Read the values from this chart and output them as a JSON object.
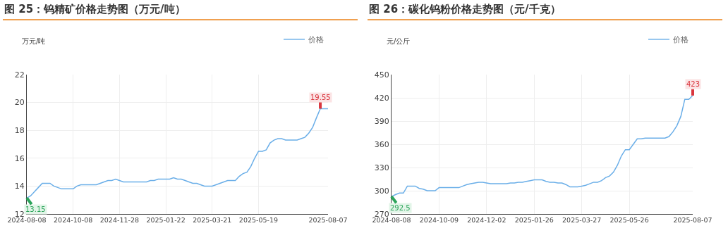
{
  "chart_data": [
    {
      "type": "line",
      "title": "图 25：钨精矿价格走势图（万元/吨）",
      "ylabel": "万元/吨",
      "legend": "top right",
      "grid": true,
      "marker": "none",
      "line_style": "solid",
      "categories": [
        "2024-08-08",
        null,
        null,
        null,
        null,
        null,
        null,
        null,
        null,
        null,
        null,
        null,
        "2024-10-08",
        null,
        null,
        null,
        null,
        null,
        null,
        null,
        null,
        null,
        null,
        null,
        "2024-11-28",
        null,
        null,
        null,
        null,
        null,
        null,
        null,
        null,
        null,
        null,
        null,
        "2025-01-22",
        null,
        null,
        null,
        null,
        null,
        null,
        null,
        null,
        null,
        null,
        null,
        "2025-03-21",
        null,
        null,
        null,
        null,
        null,
        null,
        null,
        null,
        null,
        null,
        null,
        "2025-05-19",
        null,
        null,
        null,
        null,
        null,
        null,
        null,
        null,
        null,
        null,
        null,
        null,
        null,
        null,
        null,
        null,
        null,
        "2025-08-07"
      ],
      "ylim": [
        12,
        22
      ],
      "yticks": [
        12,
        14,
        16,
        18,
        20,
        22
      ],
      "series": [
        {
          "name": "价格",
          "color": "#6aaee8",
          "values": [
            13.15,
            13.3,
            13.6,
            13.9,
            14.2,
            14.2,
            14.2,
            14.0,
            13.9,
            13.8,
            13.8,
            13.8,
            13.8,
            14.0,
            14.1,
            14.1,
            14.1,
            14.1,
            14.1,
            14.2,
            14.3,
            14.4,
            14.4,
            14.5,
            14.4,
            14.3,
            14.3,
            14.3,
            14.3,
            14.3,
            14.3,
            14.3,
            14.4,
            14.4,
            14.5,
            14.5,
            14.5,
            14.5,
            14.6,
            14.5,
            14.5,
            14.4,
            14.3,
            14.2,
            14.2,
            14.1,
            14.0,
            14.0,
            14.0,
            14.1,
            14.2,
            14.3,
            14.4,
            14.4,
            14.4,
            14.7,
            14.9,
            15.0,
            15.4,
            16.0,
            16.5,
            16.5,
            16.6,
            17.1,
            17.3,
            17.4,
            17.4,
            17.3,
            17.3,
            17.3,
            17.3,
            17.4,
            17.5,
            17.8,
            18.2,
            18.9,
            19.55,
            19.55,
            19.55
          ]
        }
      ],
      "annotations": [
        {
          "text": "13.15",
          "x": "2024-08-08",
          "y": 13.15
        },
        {
          "text": "19.55",
          "y": 19.55
        }
      ]
    },
    {
      "type": "line",
      "title": "图 26：碳化钨粉价格走势图（元/千克）",
      "ylabel": "元/公斤",
      "legend": "top right",
      "grid": true,
      "marker": "none",
      "line_style": "solid",
      "categories": [
        "2024-08-08",
        null,
        null,
        null,
        null,
        null,
        null,
        null,
        null,
        null,
        null,
        null,
        "2024-10-09",
        null,
        null,
        null,
        null,
        null,
        null,
        null,
        null,
        null,
        null,
        null,
        "2024-12-02",
        null,
        null,
        null,
        null,
        null,
        null,
        null,
        null,
        null,
        null,
        null,
        "2025-01-26",
        null,
        null,
        null,
        null,
        null,
        null,
        null,
        null,
        null,
        null,
        null,
        "2025-03-27",
        null,
        null,
        null,
        null,
        null,
        null,
        null,
        null,
        null,
        null,
        null,
        "2025-05-26",
        null,
        null,
        null,
        null,
        null,
        null,
        null,
        null,
        null,
        null,
        null,
        null,
        null,
        null,
        null,
        "2025-08-07"
      ],
      "ylim": [
        270,
        450
      ],
      "yticks": [
        270,
        300,
        330,
        360,
        390,
        420,
        450
      ],
      "series": [
        {
          "name": "价格",
          "color": "#6aaee8",
          "values": [
            292.5,
            295,
            297,
            297,
            306,
            306,
            306,
            303,
            302,
            300,
            300,
            300,
            304,
            304,
            304,
            304,
            304,
            304,
            306,
            308,
            309,
            310,
            311,
            311,
            310,
            309,
            309,
            309,
            309,
            309,
            310,
            310,
            311,
            311,
            312,
            313,
            314,
            314,
            314,
            312,
            311,
            311,
            310,
            310,
            308,
            305,
            305,
            305,
            306,
            307,
            309,
            311,
            311,
            313,
            317,
            319,
            324,
            333,
            345,
            353,
            353,
            360,
            367,
            367,
            368,
            368,
            368,
            368,
            368,
            368,
            370,
            376,
            384,
            396,
            418,
            418,
            423
          ]
        }
      ],
      "annotations": [
        {
          "text": "292.5",
          "x": "2024-08-08",
          "y": 292.5
        },
        {
          "text": "423",
          "y": 423
        }
      ]
    }
  ]
}
